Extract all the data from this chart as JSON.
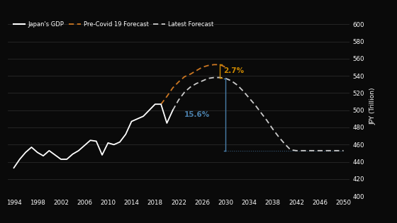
{
  "background_color": "#0a0a0a",
  "text_color": "#ffffff",
  "gdp_line_color": "#ffffff",
  "pre_covid_color": "#cc7722",
  "latest_forecast_color": "#cccccc",
  "annotation_color": "#4a7faa",
  "annotation_27_color": "#cc8800",
  "ylabel": "JPY (Trillion)",
  "ylim": [
    400,
    610
  ],
  "yticks": [
    400,
    420,
    440,
    460,
    480,
    500,
    520,
    540,
    560,
    580,
    600
  ],
  "xlim": [
    1993,
    2051
  ],
  "xticks": [
    1994,
    1998,
    2002,
    2006,
    2010,
    2014,
    2018,
    2022,
    2026,
    2030,
    2034,
    2038,
    2042,
    2046,
    2050
  ],
  "gdp_years": [
    1994,
    1995,
    1996,
    1997,
    1998,
    1999,
    2000,
    2001,
    2002,
    2003,
    2004,
    2005,
    2006,
    2007,
    2008,
    2009,
    2010,
    2011,
    2012,
    2013,
    2014,
    2015,
    2016,
    2017,
    2018,
    2019,
    2020,
    2021
  ],
  "gdp_values": [
    433,
    443,
    451,
    457,
    451,
    447,
    453,
    448,
    443,
    443,
    449,
    453,
    459,
    465,
    464,
    448,
    462,
    460,
    463,
    472,
    487,
    490,
    493,
    500,
    507,
    507,
    485,
    500
  ],
  "pre_covid_years": [
    2019,
    2020,
    2021,
    2022,
    2023,
    2024,
    2025,
    2026,
    2027,
    2028,
    2029,
    2030
  ],
  "pre_covid_values": [
    507,
    516,
    526,
    533,
    539,
    542,
    546,
    550,
    552,
    553,
    553,
    550
  ],
  "latest_years": [
    2021,
    2022,
    2023,
    2024,
    2025,
    2026,
    2027,
    2028,
    2029,
    2030,
    2031,
    2032,
    2033,
    2034,
    2035,
    2036,
    2037,
    2038,
    2039,
    2040,
    2041,
    2042,
    2043,
    2044,
    2045,
    2046,
    2047,
    2048,
    2049,
    2050
  ],
  "latest_values": [
    500,
    512,
    521,
    527,
    531,
    534,
    537,
    538,
    538,
    537,
    534,
    529,
    522,
    514,
    506,
    497,
    488,
    478,
    469,
    461,
    454,
    453,
    453,
    453,
    453,
    453,
    453,
    453,
    453,
    453
  ],
  "pre_covid_peak_val": 553,
  "latest_peak_val": 538,
  "latest_bottom_val": 453,
  "bracket_year_27": 2029,
  "bracket_year_156": 2030,
  "latest_peak_year_156": 2030,
  "gap_27_label": "2.7%",
  "gap_156_label": "15.6%"
}
